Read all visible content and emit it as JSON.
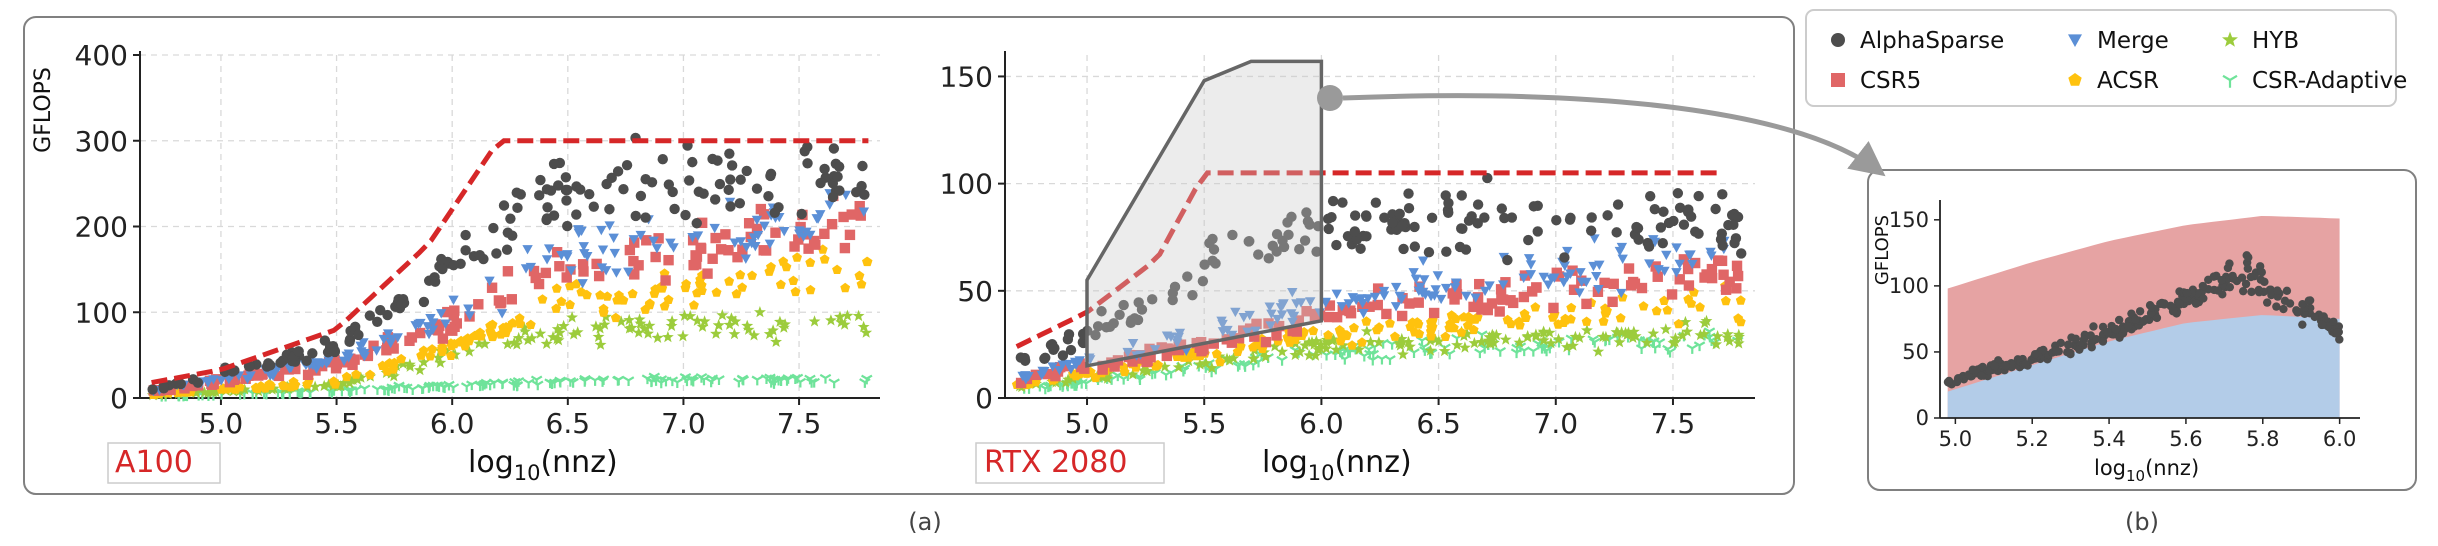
{
  "chart_data": [
    {
      "type": "scatter",
      "panel": "(a)",
      "gpu_label": "A100",
      "xlabel": "log10(nnz)",
      "ylabel": "GFLOPS",
      "xlim": [
        4.65,
        7.85
      ],
      "ylim": [
        0,
        400
      ],
      "xticks": [
        5.0,
        5.5,
        6.0,
        6.5,
        7.0,
        7.5
      ],
      "yticks": [
        0,
        100,
        200,
        300,
        400
      ],
      "grid": true,
      "roofline": {
        "x": [
          4.7,
          5.0,
          5.5,
          5.9,
          6.2,
          7.8
        ],
        "y": [
          18,
          33,
          80,
          180,
          300,
          300
        ]
      },
      "series": [
        {
          "name": "AlphaSparse",
          "trend": {
            "x": [
              4.7,
              5.5,
              6.0,
              6.4,
              7.8
            ],
            "y": [
              10,
              60,
              160,
              240,
              250
            ]
          }
        },
        {
          "name": "CSR5",
          "trend": {
            "x": [
              4.7,
              5.5,
              6.0,
              6.5,
              7.8
            ],
            "y": [
              7,
              40,
              90,
              160,
              200
            ]
          }
        },
        {
          "name": "Merge",
          "trend": {
            "x": [
              4.7,
              5.5,
              6.0,
              6.5,
              7.8
            ],
            "y": [
              8,
              45,
              100,
              170,
              210
            ]
          }
        },
        {
          "name": "ACSR",
          "trend": {
            "x": [
              4.7,
              5.5,
              6.0,
              6.5,
              7.8
            ],
            "y": [
              4,
              20,
              60,
              110,
              160
            ]
          }
        },
        {
          "name": "HYB",
          "trend": {
            "x": [
              4.7,
              5.5,
              6.0,
              6.5,
              7.8
            ],
            "y": [
              3,
              15,
              50,
              80,
              90
            ]
          }
        },
        {
          "name": "CSR-Adaptive",
          "trend": {
            "x": [
              4.7,
              5.5,
              6.0,
              6.5,
              7.8
            ],
            "y": [
              2,
              8,
              15,
              20,
              22
            ]
          }
        }
      ]
    },
    {
      "type": "scatter",
      "panel": "(a)",
      "gpu_label": "RTX 2080",
      "xlabel": "log10(nnz)",
      "ylabel": "",
      "xlim": [
        4.65,
        7.85
      ],
      "ylim": [
        0,
        160
      ],
      "xticks": [
        5.0,
        5.5,
        6.0,
        6.5,
        7.0,
        7.5
      ],
      "yticks": [
        0,
        50,
        100,
        150
      ],
      "grid": true,
      "roofline": {
        "x": [
          4.7,
          5.0,
          5.3,
          5.5,
          7.7
        ],
        "y": [
          24,
          40,
          65,
          105,
          105
        ]
      },
      "series": [
        {
          "name": "AlphaSparse",
          "trend": {
            "x": [
              4.7,
              5.3,
              5.6,
              6.0,
              7.8
            ],
            "y": [
              15,
              45,
              70,
              80,
              85
            ]
          }
        },
        {
          "name": "CSR5",
          "trend": {
            "x": [
              4.7,
              5.5,
              6.0,
              7.8
            ],
            "y": [
              8,
              25,
              40,
              60
            ]
          }
        },
        {
          "name": "Merge",
          "trend": {
            "x": [
              4.7,
              5.5,
              6.0,
              7.8
            ],
            "y": [
              10,
              30,
              45,
              70
            ]
          }
        },
        {
          "name": "ACSR",
          "trend": {
            "x": [
              4.7,
              5.5,
              6.0,
              7.8
            ],
            "y": [
              6,
              20,
              30,
              45
            ]
          }
        },
        {
          "name": "HYB",
          "trend": {
            "x": [
              4.7,
              5.5,
              6.0,
              7.8
            ],
            "y": [
              5,
              16,
              24,
              30
            ]
          }
        },
        {
          "name": "CSR-Adaptive",
          "trend": {
            "x": [
              4.7,
              5.5,
              6.0,
              7.8
            ],
            "y": [
              4,
              14,
              22,
              28
            ]
          }
        }
      ]
    },
    {
      "type": "scatter",
      "panel": "(b)",
      "xlabel": "log10(nnz)",
      "ylabel": "GFLOPS",
      "xlim": [
        4.96,
        6.04
      ],
      "ylim": [
        0,
        165
      ],
      "xticks": [
        5.0,
        5.2,
        5.4,
        5.6,
        5.8,
        6.0
      ],
      "yticks": [
        0,
        50,
        100,
        150
      ],
      "grid": false,
      "upper_band": {
        "x": [
          4.98,
          5.2,
          5.4,
          5.6,
          5.8,
          6.0
        ],
        "y": [
          98,
          118,
          134,
          146,
          153,
          151
        ]
      },
      "lower_band": {
        "x": [
          4.98,
          5.2,
          5.4,
          5.6,
          5.8,
          6.0
        ],
        "y": [
          20,
          40,
          58,
          72,
          78,
          75
        ]
      },
      "series": [
        {
          "name": "AlphaSparse",
          "trend": {
            "x": [
              4.98,
              5.2,
              5.4,
              5.6,
              5.75,
              6.0
            ],
            "y": [
              28,
              45,
              65,
              90,
              110,
              65
            ]
          }
        }
      ]
    }
  ],
  "legend": {
    "items": [
      {
        "name": "AlphaSparse",
        "color": "#4d4d4d",
        "marker": "circle"
      },
      {
        "name": "CSR5",
        "color": "#e06666",
        "marker": "square"
      },
      {
        "name": "Merge",
        "color": "#5b8fd6",
        "marker": "triangle-down"
      },
      {
        "name": "ACSR",
        "color": "#ffc20e",
        "marker": "pentagon"
      },
      {
        "name": "HYB",
        "color": "#9ccc3c",
        "marker": "star"
      },
      {
        "name": "CSR-Adaptive",
        "color": "#6fe39a",
        "marker": "tri-down"
      }
    ]
  },
  "labels": {
    "panel_a_caption": "(a)",
    "panel_b_caption": "(b)",
    "ylabel": "GFLOPS",
    "xlabel_main": "log",
    "xlabel_sub": "10",
    "xlabel_tail": "(nnz)"
  },
  "colors": {
    "roofline": "#d62728",
    "upper_band": "#e6a3a3",
    "lower_band": "#b3cce8",
    "frame": "#808080",
    "highlight_box": "#666666"
  }
}
